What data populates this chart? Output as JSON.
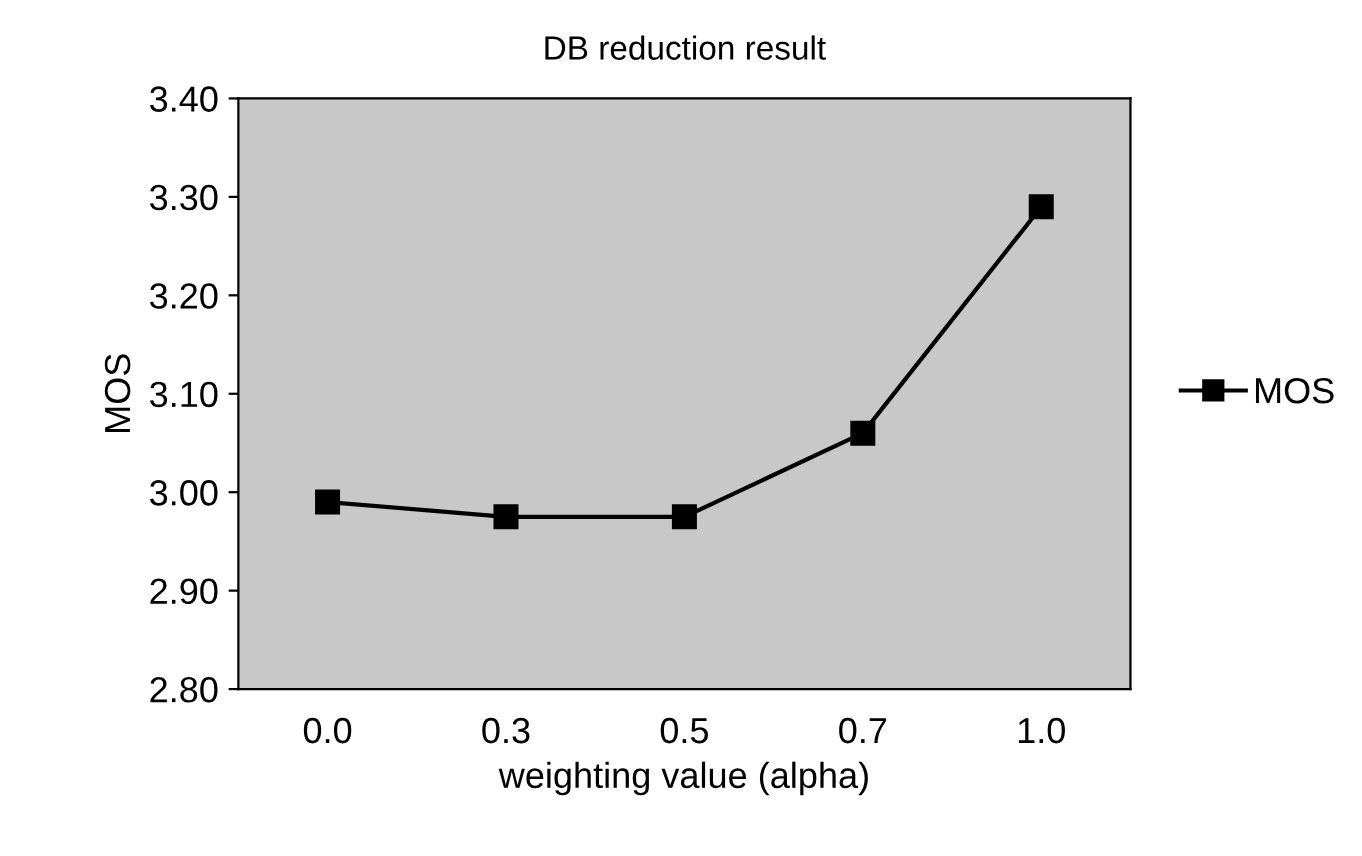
{
  "chart_data": {
    "type": "line",
    "title": "DB reduction result",
    "xlabel": "weighting value (alpha)",
    "ylabel": "MOS",
    "categories": [
      "0.0",
      "0.3",
      "0.5",
      "0.7",
      "1.0"
    ],
    "series": [
      {
        "name": "MOS",
        "color": "#000000",
        "values": [
          2.99,
          2.975,
          2.975,
          3.06,
          3.29
        ]
      }
    ],
    "ylim": [
      2.8,
      3.4
    ],
    "yticks": [
      {
        "value": 2.8,
        "label": "2.80"
      },
      {
        "value": 2.9,
        "label": "2.90"
      },
      {
        "value": 3.0,
        "label": "3.00"
      },
      {
        "value": 3.1,
        "label": "3.10"
      },
      {
        "value": 3.2,
        "label": "3.20"
      },
      {
        "value": 3.3,
        "label": "3.30"
      },
      {
        "value": 3.4,
        "label": "3.40"
      }
    ],
    "marker": "square",
    "line_style": "solid",
    "legend": "right",
    "grid": false
  }
}
